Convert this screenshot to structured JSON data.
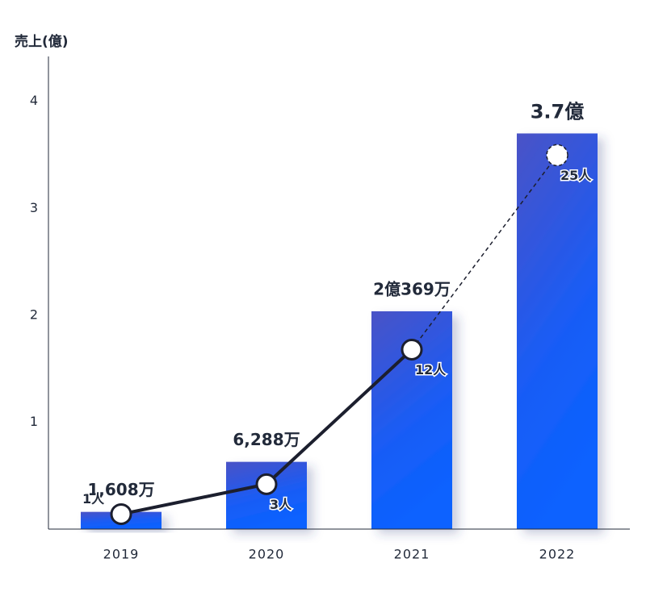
{
  "chart_data": {
    "type": "bar",
    "ylabel": "売上(億)",
    "categories": [
      "2019",
      "2020",
      "2021",
      "2022"
    ],
    "ylim": [
      0,
      4.42
    ],
    "yticks": [
      1,
      2,
      3,
      4
    ],
    "y2lim": [
      0,
      31.6
    ],
    "series": [
      {
        "name": "売上",
        "type": "bar",
        "color": "#1a5cf5",
        "values": [
          0.1608,
          0.6288,
          2.0369,
          3.7
        ],
        "value_labels": [
          "1,608万",
          "6,288万",
          "2億369万",
          "3.7億"
        ]
      },
      {
        "name": "人数",
        "type": "line",
        "axis": "y2",
        "color": "#1c1f2e",
        "values": [
          1,
          3,
          12,
          25
        ],
        "value_labels": [
          "1人",
          "3人",
          "12人",
          "25人"
        ]
      }
    ]
  }
}
